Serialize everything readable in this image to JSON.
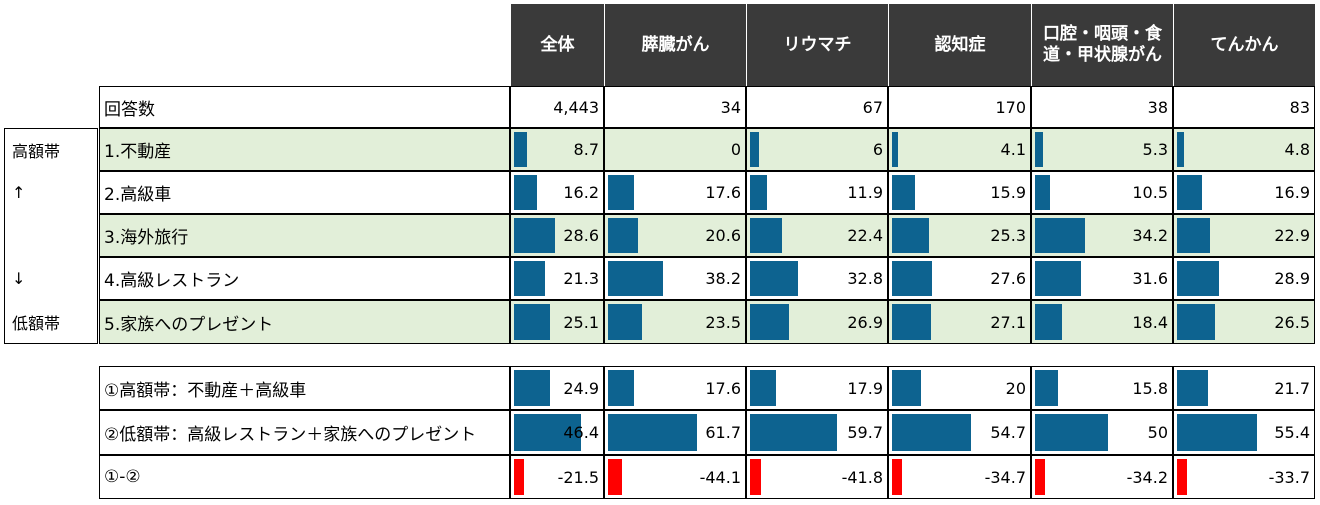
{
  "colors": {
    "header_bg": "#3a3a3a",
    "row_green": "#e2efd9",
    "bar_blue": "#0d6390",
    "bar_red": "#ff0000"
  },
  "side_labels": [
    "高額帯",
    "↑",
    "↓",
    "低額帯"
  ],
  "chart_data": {
    "type": "table",
    "columns": [
      "全体",
      "膵臓がん",
      "リウマチ",
      "認知症",
      "口腔・咽頭・食\n道・甲状腺がん",
      "てんかん"
    ],
    "respondents": {
      "label": "回答数",
      "values": [
        "4,443",
        "34",
        "67",
        "170",
        "38",
        "83"
      ]
    },
    "items": [
      {
        "label": "1.不動産",
        "values": [
          8.7,
          0,
          6,
          4.1,
          5.3,
          4.8
        ]
      },
      {
        "label": "2.高級車",
        "values": [
          16.2,
          17.6,
          11.9,
          15.9,
          10.5,
          16.9
        ]
      },
      {
        "label": "3.海外旅行",
        "values": [
          28.6,
          20.6,
          22.4,
          25.3,
          34.2,
          22.9
        ]
      },
      {
        "label": "4.高級レストラン",
        "values": [
          21.3,
          38.2,
          32.8,
          27.6,
          31.6,
          28.9
        ]
      },
      {
        "label": "5.家族へのプレゼント",
        "values": [
          25.1,
          23.5,
          26.9,
          27.1,
          18.4,
          26.5
        ]
      }
    ],
    "summary": [
      {
        "label": "①高額帯：不動産＋高級車",
        "values": [
          24.9,
          17.6,
          17.9,
          20,
          15.8,
          21.7
        ]
      },
      {
        "label": "②低額帯：高級レストラン＋家族へのプレゼント",
        "values": [
          46.4,
          61.7,
          59.7,
          54.7,
          50,
          55.4
        ]
      },
      {
        "label": "①-②",
        "values": [
          -21.5,
          -44.1,
          -41.8,
          -34.7,
          -34.2,
          -33.7
        ]
      }
    ]
  }
}
